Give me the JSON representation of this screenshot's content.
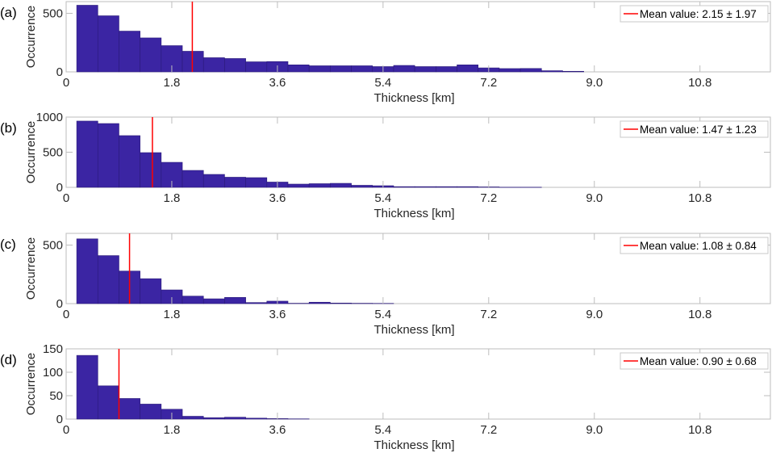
{
  "chart_data": [
    {
      "type": "bar",
      "panel_label": "(a)",
      "xlabel": "Thickness [km]",
      "ylabel": "Occurrence",
      "xlim": [
        0,
        12
      ],
      "ylim": [
        0,
        600
      ],
      "xticks": [
        0,
        1.8,
        3.6,
        5.4,
        7.2,
        9.0,
        10.8
      ],
      "xtick_labels": [
        "0",
        "1.8",
        "3.6",
        "5.4",
        "7.2",
        "9.0",
        "10.8"
      ],
      "yticks": [
        0,
        500
      ],
      "ytick_labels": [
        "0",
        "500"
      ],
      "bin_start": 0.18,
      "bin_width": 0.36,
      "values": [
        569,
        479,
        348,
        290,
        224,
        176,
        121,
        114,
        86,
        88,
        60,
        52,
        52,
        52,
        45,
        55,
        45,
        45,
        60,
        34,
        28,
        29,
        10,
        5
      ],
      "mean_value": 2.15,
      "legend": "Mean value: 2.15 ± 1.97",
      "legend_position": "top-right"
    },
    {
      "type": "bar",
      "panel_label": "(b)",
      "xlabel": "Thickness [km]",
      "ylabel": "Occurrence",
      "xlim": [
        0,
        12
      ],
      "ylim": [
        0,
        1000
      ],
      "xticks": [
        0,
        1.8,
        3.6,
        5.4,
        7.2,
        9.0,
        10.8
      ],
      "xtick_labels": [
        "0",
        "1.8",
        "3.6",
        "5.4",
        "7.2",
        "9.0",
        "10.8"
      ],
      "yticks": [
        0,
        500,
        1000
      ],
      "ytick_labels": [
        "0",
        "500",
        "1000"
      ],
      "bin_start": 0.18,
      "bin_width": 0.36,
      "values": [
        943,
        908,
        736,
        494,
        356,
        241,
        184,
        144,
        138,
        75,
        46,
        52,
        57,
        29,
        23,
        10,
        10,
        10,
        10,
        6,
        2,
        2
      ],
      "mean_value": 1.47,
      "legend": "Mean value: 1.47 ± 1.23",
      "legend_position": "top-right"
    },
    {
      "type": "bar",
      "panel_label": "(c)",
      "xlabel": "Thickness [km]",
      "ylabel": "Occurrence",
      "xlim": [
        0,
        12
      ],
      "ylim": [
        0,
        600
      ],
      "xticks": [
        0,
        1.8,
        3.6,
        5.4,
        7.2,
        9.0,
        10.8
      ],
      "xtick_labels": [
        "0",
        "1.8",
        "3.6",
        "5.4",
        "7.2",
        "9.0",
        "10.8"
      ],
      "yticks": [
        0,
        500
      ],
      "ytick_labels": [
        "0",
        "500"
      ],
      "bin_start": 0.18,
      "bin_width": 0.36,
      "values": [
        553,
        410,
        278,
        213,
        117,
        64,
        41,
        53,
        9,
        21,
        3,
        12,
        5,
        3,
        2
      ],
      "mean_value": 1.08,
      "legend": "Mean value: 1.08 ± 0.84",
      "legend_position": "top-right"
    },
    {
      "type": "bar",
      "panel_label": "(d)",
      "xlabel": "Thickness [km]",
      "ylabel": "Occurrence",
      "xlim": [
        0,
        12
      ],
      "ylim": [
        0,
        150
      ],
      "xticks": [
        0,
        1.8,
        3.6,
        5.4,
        7.2,
        9.0,
        10.8
      ],
      "xtick_labels": [
        "0",
        "1.8",
        "3.6",
        "5.4",
        "7.2",
        "9.0",
        "10.8"
      ],
      "yticks": [
        0,
        50,
        100,
        150
      ],
      "ytick_labels": [
        "0",
        "50",
        "100",
        "150"
      ],
      "bin_start": 0.18,
      "bin_width": 0.36,
      "values": [
        136,
        71,
        44,
        32,
        21,
        6,
        3,
        4,
        2,
        1,
        0.5
      ],
      "mean_value": 0.9,
      "legend": "Mean value: 0.90 ± 0.68",
      "legend_position": "top-right"
    }
  ],
  "colors": {
    "bar_fill": "#3b25a3",
    "bar_edge": "#2a1a78",
    "mean_line": "#ff0000",
    "axis": "#bdbdbd"
  }
}
